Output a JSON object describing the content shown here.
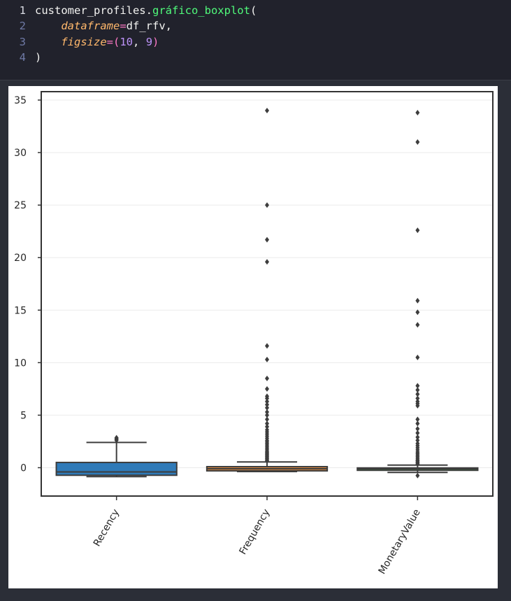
{
  "code": {
    "lines": [
      {
        "num": "1",
        "tokens": [
          {
            "t": "customer_profiles.",
            "c": "plain"
          },
          {
            "t": "gráfico_boxplot",
            "c": "fn"
          },
          {
            "t": "(",
            "c": "plain"
          }
        ]
      },
      {
        "num": "2",
        "tokens": [
          {
            "t": "    ",
            "c": "plain"
          },
          {
            "t": "dataframe",
            "c": "kw"
          },
          {
            "t": "=",
            "c": "op"
          },
          {
            "t": "df_rfv",
            "c": "plain"
          },
          {
            "t": ",",
            "c": "plain"
          }
        ]
      },
      {
        "num": "3",
        "tokens": [
          {
            "t": "    ",
            "c": "plain"
          },
          {
            "t": "figsize",
            "c": "kw"
          },
          {
            "t": "=",
            "c": "op"
          },
          {
            "t": "(",
            "c": "op"
          },
          {
            "t": "10",
            "c": "num"
          },
          {
            "t": ", ",
            "c": "plain"
          },
          {
            "t": "9",
            "c": "num"
          },
          {
            "t": ")",
            "c": "op"
          }
        ]
      },
      {
        "num": "4",
        "tokens": [
          {
            "t": ")",
            "c": "plain"
          }
        ]
      }
    ]
  },
  "colors": {
    "recency_box": "#2f7ab8",
    "frequency_box": "#d6843f",
    "monetary_box": "#3a923a",
    "line": "#3d3d3d"
  },
  "chart_data": {
    "type": "boxplot",
    "title": "",
    "xlabel": "",
    "ylabel": "",
    "ylim": [
      -2.7,
      35.8
    ],
    "yticks": [
      0,
      5,
      10,
      15,
      20,
      25,
      30,
      35
    ],
    "grid": true,
    "categories": [
      "Recency",
      "Frequency",
      "MonetaryValue"
    ],
    "boxes": [
      {
        "name": "Recency",
        "whisker_low": -0.85,
        "q1": -0.72,
        "median": -0.4,
        "q3": 0.5,
        "whisker_high": 2.4,
        "outliers": [
          2.6,
          2.7,
          2.75,
          2.85
        ]
      },
      {
        "name": "Frequency",
        "whisker_low": -0.37,
        "q1": -0.3,
        "median": -0.1,
        "q3": 0.1,
        "whisker_high": 0.55,
        "outliers": [
          0.65,
          0.75,
          0.85,
          0.95,
          1.05,
          1.15,
          1.25,
          1.35,
          1.45,
          1.55,
          1.7,
          1.85,
          2.0,
          2.15,
          2.3,
          2.45,
          2.6,
          2.8,
          3.0,
          3.2,
          3.4,
          3.6,
          3.9,
          4.2,
          4.6,
          5.0,
          5.3,
          5.7,
          6.0,
          6.3,
          6.6,
          6.8,
          7.5,
          8.5,
          10.3,
          11.6,
          19.6,
          21.7,
          25.0,
          34.0
        ]
      },
      {
        "name": "MonetaryValue",
        "whisker_low": -0.45,
        "q1": -0.25,
        "median": -0.1,
        "q3": -0.02,
        "whisker_high": 0.25,
        "outliers": [
          -0.75,
          0.35,
          0.45,
          0.55,
          0.65,
          0.75,
          0.9,
          1.05,
          1.2,
          1.35,
          1.5,
          1.7,
          1.9,
          2.1,
          2.3,
          2.6,
          2.9,
          3.3,
          3.7,
          4.2,
          4.6,
          5.9,
          6.1,
          6.3,
          6.6,
          7.0,
          7.4,
          7.8,
          10.5,
          13.6,
          14.8,
          15.9,
          22.6,
          31.0,
          33.8
        ]
      }
    ]
  }
}
